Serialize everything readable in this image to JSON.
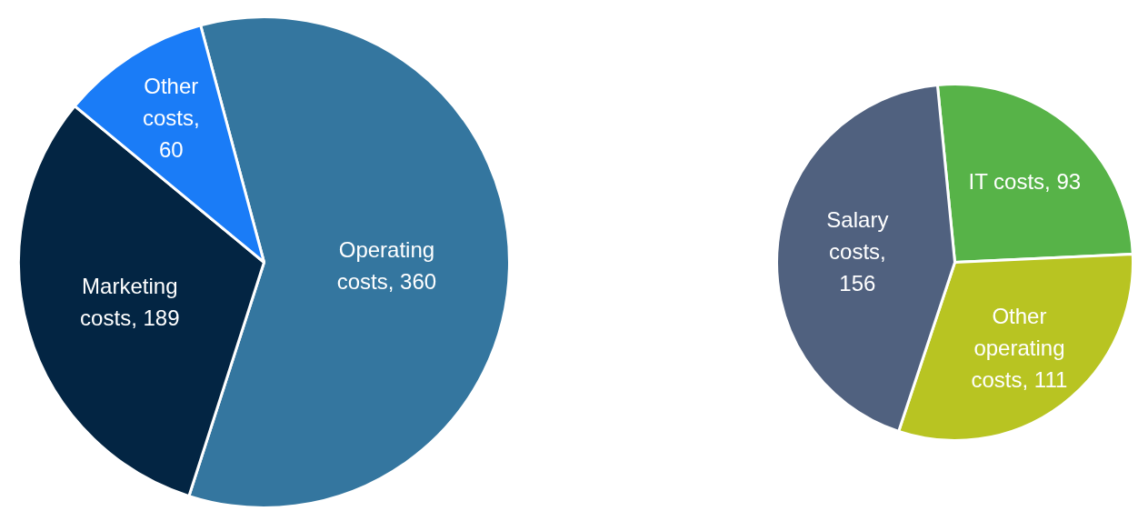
{
  "chart_data": [
    {
      "type": "pie",
      "categories": [
        "Operating costs, 360",
        "Marketing costs, 189",
        "Other costs, 60"
      ],
      "values": [
        360,
        189,
        60
      ],
      "colors": [
        "#34769f",
        "#032543",
        "#1a7cf7"
      ]
    },
    {
      "type": "pie",
      "categories": [
        "IT costs, 93",
        "Other operating costs, 111",
        "Salary costs, 156"
      ],
      "values": [
        93,
        111,
        156
      ],
      "colors": [
        "#57b348",
        "#b8c422",
        "#50617f"
      ]
    }
  ]
}
